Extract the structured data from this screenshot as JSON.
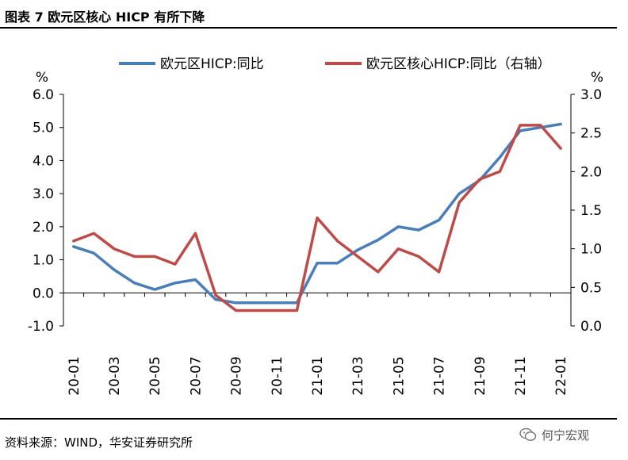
{
  "header": {
    "title": "图表 7  欧元区核心 HICP 有所下降"
  },
  "footer": {
    "source": "资料来源：WIND，华安证券研究所",
    "watermark": "何宁宏观"
  },
  "chart_data": {
    "type": "line",
    "title": "",
    "y_left_unit": "%",
    "y_right_unit": "%",
    "x": [
      "20-01",
      "20-02",
      "20-03",
      "20-04",
      "20-05",
      "20-06",
      "20-07",
      "20-08",
      "20-09",
      "20-10",
      "20-11",
      "20-12",
      "21-01",
      "21-02",
      "21-03",
      "21-04",
      "21-05",
      "21-06",
      "21-07",
      "21-08",
      "21-09",
      "21-10",
      "21-11",
      "21-12",
      "22-01"
    ],
    "x_tick_labels": [
      "20-01",
      "20-03",
      "20-05",
      "20-07",
      "20-09",
      "20-11",
      "21-01",
      "21-03",
      "21-05",
      "21-07",
      "21-09",
      "21-11",
      "22-01"
    ],
    "ylim_left": [
      -1.0,
      6.0
    ],
    "y_left_ticks": [
      "-1.0",
      "0.0",
      "1.0",
      "2.0",
      "3.0",
      "4.0",
      "5.0",
      "6.0"
    ],
    "ylim_right": [
      0.0,
      3.0
    ],
    "y_right_ticks": [
      "0.0",
      "0.5",
      "1.0",
      "1.5",
      "2.0",
      "2.5",
      "3.0"
    ],
    "legend_position": "top",
    "grid": false,
    "series": [
      {
        "name": "欧元区HICP:同比",
        "axis": "left",
        "color": "#4a7ebb",
        "values": [
          1.4,
          1.2,
          0.7,
          0.3,
          0.1,
          0.3,
          0.4,
          -0.2,
          -0.3,
          -0.3,
          -0.3,
          -0.3,
          0.9,
          0.9,
          1.3,
          1.6,
          2.0,
          1.9,
          2.2,
          3.0,
          3.4,
          4.1,
          4.9,
          5.0,
          5.1
        ]
      },
      {
        "name": "欧元区核心HICP:同比（右轴）",
        "axis": "right",
        "color": "#be4b48",
        "values": [
          1.1,
          1.2,
          1.0,
          0.9,
          0.9,
          0.8,
          1.2,
          0.4,
          0.2,
          0.2,
          0.2,
          0.2,
          1.4,
          1.1,
          0.9,
          0.7,
          1.0,
          0.9,
          0.7,
          1.6,
          1.9,
          2.0,
          2.6,
          2.6,
          2.3
        ]
      }
    ]
  }
}
